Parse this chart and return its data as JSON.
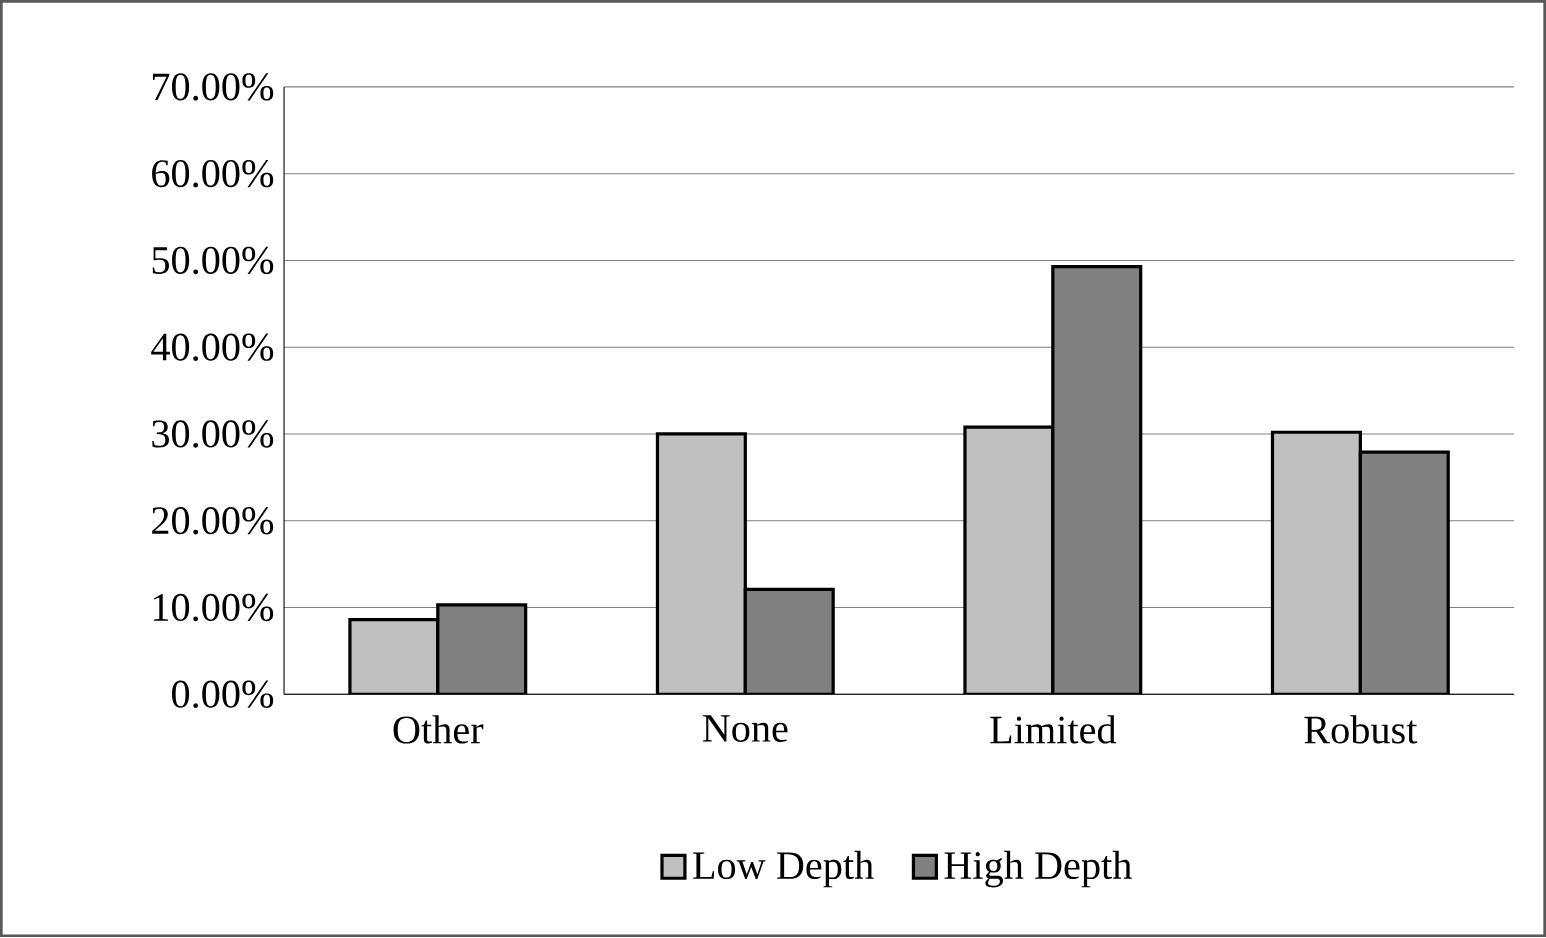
{
  "chart_data": {
    "type": "bar",
    "categories": [
      "Other",
      "None",
      "Limited",
      "Robust"
    ],
    "series": [
      {
        "name": "Low Depth",
        "color": "#c0c0c0",
        "values": [
          8.6,
          30.0,
          30.8,
          30.2
        ]
      },
      {
        "name": "High Depth",
        "color": "#808080",
        "values": [
          10.3,
          12.1,
          49.3,
          27.9
        ]
      }
    ],
    "ylim": [
      0,
      70
    ],
    "yticks": [
      {
        "value": 0,
        "label": "0.00%"
      },
      {
        "value": 10,
        "label": "10.00%"
      },
      {
        "value": 20,
        "label": "20.00%"
      },
      {
        "value": 30,
        "label": "30.00%"
      },
      {
        "value": 40,
        "label": "40.00%"
      },
      {
        "value": 50,
        "label": "50.00%"
      },
      {
        "value": 60,
        "label": "60.00%"
      },
      {
        "value": 70,
        "label": "70.00%"
      }
    ],
    "grid": "y",
    "legend": "bottom"
  }
}
